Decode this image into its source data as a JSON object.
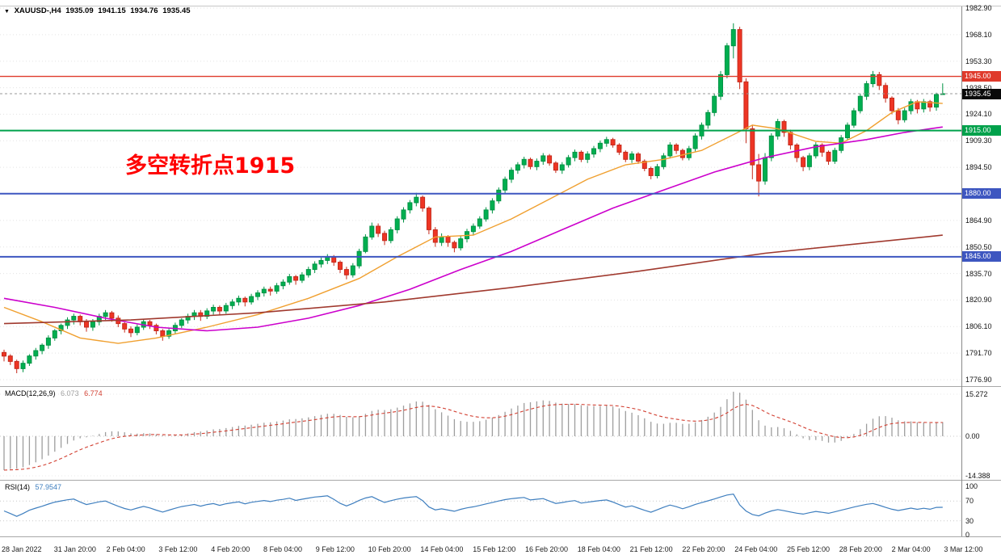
{
  "header": {
    "menu_icon": "▼",
    "symbol": "XAUUSD-,H4",
    "open": "1935.09",
    "high": "1941.15",
    "low": "1934.76",
    "close": "1935.45"
  },
  "annotation": {
    "text": "多空转折点1915",
    "color": "#ff0000"
  },
  "panels": {
    "macd_label": "MACD(12,26,9)",
    "macd_value_main": "6.073",
    "macd_value_signal": "6.774",
    "rsi_label": "RSI(14)",
    "rsi_value": "57.9547"
  },
  "price_axis": {
    "ticks": [
      "1982.90",
      "1968.10",
      "1953.30",
      "1938.50",
      "1924.10",
      "1909.30",
      "1894.50",
      null,
      "1864.90",
      "1850.50",
      "1835.70",
      "1820.90",
      "1806.10",
      "1791.70",
      "1776.90"
    ],
    "badges": [
      {
        "label": "1945.00",
        "price": 1945.0,
        "bg": "#df3a2b"
      },
      {
        "label": "1935.45",
        "price": 1935.45,
        "bg": "#0a0a0a"
      },
      {
        "label": "1915.00",
        "price": 1915.0,
        "bg": "#00a14b"
      },
      {
        "label": "1880.00",
        "price": 1880.0,
        "bg": "#3d56c0"
      },
      {
        "label": "1845.00",
        "price": 1845.0,
        "bg": "#3d56c0"
      }
    ]
  },
  "hlines": [
    {
      "price": 1945.0,
      "color": "#df3a2b",
      "width": 1.4
    },
    {
      "price": 1915.0,
      "color": "#00a14b",
      "width": 2
    },
    {
      "price": 1880.0,
      "color": "#3d56c0",
      "width": 2
    },
    {
      "price": 1845.0,
      "color": "#3d56c0",
      "width": 2
    },
    {
      "price": 1935.45,
      "color": "#9a9a9a",
      "width": 1,
      "dash": "3,3"
    }
  ],
  "colors": {
    "up": "#00af50",
    "up_stroke": "#009344",
    "down": "#ee3524",
    "down_stroke": "#c52a1c",
    "grid": "#e3e3e3",
    "separator": "#a8a8a8",
    "axis_text": "#111111"
  },
  "chart_data": {
    "type": "candlestick",
    "symbol": "XAUUSD-",
    "timeframe": "H4",
    "ylim": [
      1776.9,
      1982.9
    ],
    "x_labels": [
      "28 Jan 2022",
      "31 Jan 20:00",
      "2 Feb 04:00",
      "3 Feb 12:00",
      "4 Feb 20:00",
      "8 Feb 04:00",
      "9 Feb 12:00",
      "10 Feb 20:00",
      "14 Feb 04:00",
      "15 Feb 12:00",
      "16 Feb 20:00",
      "18 Feb 04:00",
      "21 Feb 12:00",
      "22 Feb 20:00",
      "24 Feb 04:00",
      "25 Feb 12:00",
      "28 Feb 20:00",
      "2 Mar 04:00",
      "3 Mar 12:00"
    ],
    "candles": [
      [
        1792,
        1793.5,
        1787,
        1790
      ],
      [
        1790,
        1791,
        1785,
        1787
      ],
      [
        1787,
        1788,
        1780.5,
        1783
      ],
      [
        1783,
        1787.5,
        1781,
        1786
      ],
      [
        1786,
        1791,
        1784.5,
        1790
      ],
      [
        1790,
        1794.5,
        1788,
        1793
      ],
      [
        1793,
        1797,
        1791,
        1796
      ],
      [
        1796,
        1801.5,
        1794,
        1800
      ],
      [
        1800,
        1805,
        1798.5,
        1804
      ],
      [
        1804,
        1808,
        1802,
        1807
      ],
      [
        1807,
        1811.5,
        1805,
        1810
      ],
      [
        1810,
        1813.5,
        1807.5,
        1812
      ],
      [
        1812,
        1813,
        1807,
        1809
      ],
      [
        1809,
        1810.5,
        1803.5,
        1806
      ],
      [
        1806,
        1810.5,
        1804,
        1809
      ],
      [
        1809,
        1813.5,
        1807,
        1812
      ],
      [
        1812,
        1815.5,
        1810,
        1814
      ],
      [
        1814,
        1815,
        1809,
        1811
      ],
      [
        1811,
        1812.5,
        1806,
        1808
      ],
      [
        1808,
        1809,
        1803,
        1805
      ],
      [
        1805,
        1806.5,
        1800.5,
        1803
      ],
      [
        1803,
        1807.5,
        1801.5,
        1806
      ],
      [
        1806,
        1810.5,
        1804.5,
        1809
      ],
      [
        1809,
        1810,
        1805,
        1807
      ],
      [
        1807,
        1808,
        1802,
        1804
      ],
      [
        1804,
        1805,
        1798.5,
        1801
      ],
      [
        1801,
        1805.5,
        1799.5,
        1804
      ],
      [
        1804,
        1808.5,
        1802,
        1807
      ],
      [
        1807,
        1811,
        1805.5,
        1810
      ],
      [
        1810,
        1813.5,
        1808,
        1812
      ],
      [
        1812,
        1815.5,
        1810,
        1814
      ],
      [
        1814,
        1815.5,
        1809.5,
        1812
      ],
      [
        1812,
        1816.5,
        1810.5,
        1815
      ],
      [
        1815,
        1818.5,
        1813,
        1817
      ],
      [
        1817,
        1818,
        1812.5,
        1815
      ],
      [
        1815,
        1819.5,
        1813.5,
        1818
      ],
      [
        1818,
        1821.5,
        1816,
        1820
      ],
      [
        1820,
        1823.5,
        1818,
        1822
      ],
      [
        1822,
        1823,
        1817.5,
        1820
      ],
      [
        1820,
        1824.5,
        1818.5,
        1823
      ],
      [
        1823,
        1826.5,
        1821,
        1825
      ],
      [
        1825,
        1828.5,
        1823,
        1827
      ],
      [
        1827,
        1828.5,
        1823.5,
        1826
      ],
      [
        1826,
        1830.5,
        1824.5,
        1829
      ],
      [
        1829,
        1832.5,
        1827,
        1831
      ],
      [
        1831,
        1835.5,
        1829.5,
        1834
      ],
      [
        1834,
        1835,
        1829.5,
        1832
      ],
      [
        1832,
        1836.5,
        1830.5,
        1835
      ],
      [
        1835,
        1839.5,
        1833.5,
        1838
      ],
      [
        1838,
        1842.5,
        1836,
        1841
      ],
      [
        1841,
        1844.5,
        1839,
        1843
      ],
      [
        1843,
        1846.5,
        1841,
        1845
      ],
      [
        1845,
        1846,
        1840,
        1842
      ],
      [
        1842,
        1843,
        1836,
        1838
      ],
      [
        1838,
        1839.5,
        1832.5,
        1835
      ],
      [
        1835,
        1841.5,
        1833.5,
        1840
      ],
      [
        1840,
        1849.5,
        1838.5,
        1848
      ],
      [
        1848,
        1857.5,
        1847,
        1856
      ],
      [
        1856,
        1864,
        1854.5,
        1862
      ],
      [
        1862,
        1863.5,
        1856,
        1858
      ],
      [
        1858,
        1859.5,
        1851.5,
        1854
      ],
      [
        1854,
        1861.5,
        1852.5,
        1860
      ],
      [
        1860,
        1867.5,
        1858,
        1866
      ],
      [
        1866,
        1872.5,
        1864,
        1871
      ],
      [
        1871,
        1876.5,
        1869,
        1875
      ],
      [
        1875,
        1880.5,
        1873,
        1878
      ],
      [
        1878,
        1879,
        1870,
        1872
      ],
      [
        1872,
        1873,
        1857.5,
        1860
      ],
      [
        1860,
        1861.5,
        1850.5,
        1853
      ],
      [
        1853,
        1858,
        1851,
        1856
      ],
      [
        1856,
        1857,
        1850.5,
        1853
      ],
      [
        1853,
        1854,
        1847.5,
        1850
      ],
      [
        1850,
        1856.5,
        1848.5,
        1855
      ],
      [
        1855,
        1860.5,
        1853,
        1859
      ],
      [
        1859,
        1863.5,
        1857,
        1862
      ],
      [
        1862,
        1867.5,
        1860.5,
        1866
      ],
      [
        1866,
        1872.5,
        1864.5,
        1871
      ],
      [
        1871,
        1877.5,
        1869,
        1876
      ],
      [
        1876,
        1883.5,
        1874.5,
        1882
      ],
      [
        1882,
        1889.5,
        1880,
        1888
      ],
      [
        1888,
        1894.5,
        1886,
        1893
      ],
      [
        1893,
        1897.5,
        1891,
        1896
      ],
      [
        1896,
        1900.5,
        1894,
        1899
      ],
      [
        1899,
        1900,
        1893.5,
        1895
      ],
      [
        1895,
        1899.5,
        1893,
        1898
      ],
      [
        1898,
        1902.5,
        1896,
        1901
      ],
      [
        1901,
        1902,
        1895.5,
        1897
      ],
      [
        1897,
        1898,
        1891.5,
        1893
      ],
      [
        1893,
        1897.5,
        1891,
        1896
      ],
      [
        1896,
        1901.5,
        1894.5,
        1900
      ],
      [
        1900,
        1904.5,
        1898,
        1903
      ],
      [
        1903,
        1904,
        1897.5,
        1899
      ],
      [
        1899,
        1903.5,
        1897,
        1902
      ],
      [
        1902,
        1906.5,
        1900,
        1905
      ],
      [
        1905,
        1909.5,
        1903,
        1908
      ],
      [
        1908,
        1911.5,
        1906,
        1910
      ],
      [
        1910,
        1911,
        1905.5,
        1907
      ],
      [
        1907,
        1908,
        1901.5,
        1903
      ],
      [
        1903,
        1904,
        1897.5,
        1899
      ],
      [
        1899,
        1903.5,
        1897,
        1902
      ],
      [
        1902,
        1903,
        1896.5,
        1898
      ],
      [
        1898,
        1899,
        1892.5,
        1894
      ],
      [
        1894,
        1895,
        1888,
        1890
      ],
      [
        1890,
        1896.5,
        1888.5,
        1895
      ],
      [
        1895,
        1902.5,
        1893.5,
        1901
      ],
      [
        1901,
        1908.5,
        1899.5,
        1907
      ],
      [
        1907,
        1908,
        1902,
        1904
      ],
      [
        1904,
        1905,
        1898.5,
        1900
      ],
      [
        1900,
        1906.5,
        1898.5,
        1905
      ],
      [
        1905,
        1913.5,
        1903.5,
        1912
      ],
      [
        1912,
        1919.5,
        1910,
        1918
      ],
      [
        1918,
        1926.5,
        1916,
        1925
      ],
      [
        1925,
        1935.5,
        1923,
        1934
      ],
      [
        1934,
        1948,
        1932,
        1946
      ],
      [
        1946,
        1963.5,
        1944,
        1962
      ],
      [
        1962,
        1974.5,
        1955,
        1971
      ],
      [
        1971,
        1972.5,
        1938,
        1942
      ],
      [
        1942,
        1944,
        1908,
        1916
      ],
      [
        1916,
        1918,
        1888,
        1896
      ],
      [
        1896,
        1902,
        1878.5,
        1887
      ],
      [
        1887,
        1902.5,
        1885,
        1900
      ],
      [
        1900,
        1913.5,
        1898,
        1912
      ],
      [
        1912,
        1921.5,
        1910,
        1920
      ],
      [
        1920,
        1921,
        1911.5,
        1914
      ],
      [
        1914,
        1915.5,
        1904.5,
        1907
      ],
      [
        1907,
        1908,
        1897.5,
        1900
      ],
      [
        1900,
        1901,
        1892.5,
        1895
      ],
      [
        1895,
        1902.5,
        1893,
        1901
      ],
      [
        1901,
        1908.5,
        1899.5,
        1907
      ],
      [
        1907,
        1908,
        1900.5,
        1903
      ],
      [
        1903,
        1904,
        1896,
        1898
      ],
      [
        1898,
        1905.5,
        1896.5,
        1904
      ],
      [
        1904,
        1912.5,
        1902.5,
        1911
      ],
      [
        1911,
        1919.5,
        1909.5,
        1918
      ],
      [
        1918,
        1927.5,
        1916.5,
        1926
      ],
      [
        1926,
        1935.5,
        1924.5,
        1934
      ],
      [
        1934,
        1942.5,
        1932,
        1941
      ],
      [
        1941,
        1948,
        1939,
        1946
      ],
      [
        1946,
        1947.5,
        1937.5,
        1940
      ],
      [
        1940,
        1941.5,
        1930.5,
        1933
      ],
      [
        1933,
        1934,
        1924,
        1926
      ],
      [
        1926,
        1927.5,
        1918.5,
        1921
      ],
      [
        1921,
        1927.5,
        1919.5,
        1926
      ],
      [
        1926,
        1932.5,
        1924,
        1931
      ],
      [
        1931,
        1932,
        1924.5,
        1927
      ],
      [
        1927,
        1932.5,
        1925,
        1931
      ],
      [
        1931,
        1932,
        1925.5,
        1928
      ],
      [
        1928,
        1936,
        1926,
        1935
      ],
      [
        1935.09,
        1941.15,
        1934.76,
        1935.45
      ]
    ],
    "ma_lines": [
      {
        "name": "ma-fast-line",
        "color": "#f0a030",
        "width": 1.4,
        "points": [
          [
            0,
            1817
          ],
          [
            6,
            1809
          ],
          [
            12,
            1800
          ],
          [
            18,
            1797
          ],
          [
            24,
            1800
          ],
          [
            32,
            1806
          ],
          [
            40,
            1813
          ],
          [
            48,
            1822
          ],
          [
            56,
            1833
          ],
          [
            62,
            1845
          ],
          [
            68,
            1856
          ],
          [
            74,
            1857
          ],
          [
            80,
            1866
          ],
          [
            86,
            1877
          ],
          [
            92,
            1888
          ],
          [
            98,
            1896
          ],
          [
            104,
            1899
          ],
          [
            110,
            1904
          ],
          [
            114,
            1911
          ],
          [
            118,
            1918
          ],
          [
            122,
            1916
          ],
          [
            128,
            1909
          ],
          [
            132,
            1908
          ],
          [
            136,
            1915
          ],
          [
            140,
            1925
          ],
          [
            144,
            1931
          ],
          [
            148,
            1930
          ]
        ]
      },
      {
        "name": "ma-mid-line",
        "color": "#cc00cc",
        "width": 1.6,
        "points": [
          [
            0,
            1822
          ],
          [
            8,
            1817
          ],
          [
            16,
            1811
          ],
          [
            24,
            1806
          ],
          [
            32,
            1804
          ],
          [
            40,
            1806
          ],
          [
            48,
            1811
          ],
          [
            56,
            1818
          ],
          [
            64,
            1827
          ],
          [
            72,
            1838
          ],
          [
            80,
            1848
          ],
          [
            88,
            1860
          ],
          [
            96,
            1872
          ],
          [
            104,
            1882
          ],
          [
            112,
            1892
          ],
          [
            120,
            1900
          ],
          [
            128,
            1906
          ],
          [
            136,
            1910
          ],
          [
            142,
            1914
          ],
          [
            148,
            1917
          ]
        ]
      },
      {
        "name": "ma-slow-line",
        "color": "#a0392e",
        "width": 1.6,
        "points": [
          [
            0,
            1808
          ],
          [
            20,
            1810
          ],
          [
            40,
            1814
          ],
          [
            60,
            1820
          ],
          [
            80,
            1828
          ],
          [
            100,
            1837
          ],
          [
            120,
            1847
          ],
          [
            148,
            1857
          ]
        ]
      }
    ],
    "indicators": [
      {
        "name": "MACD",
        "params": "12,26,9",
        "value_main": "6.073",
        "value_signal": "6.774",
        "axis_labels": [
          "15.272",
          "0.00",
          "-14.388"
        ],
        "histogram_color": "#9e9e9e",
        "signal_color": "#d23f31"
      },
      {
        "name": "RSI",
        "params": "14",
        "value": "57.9547",
        "axis_labels": [
          "100",
          "70",
          "30",
          "0"
        ],
        "line_color": "#3f7fbf",
        "levels": [
          70,
          30
        ]
      }
    ]
  }
}
